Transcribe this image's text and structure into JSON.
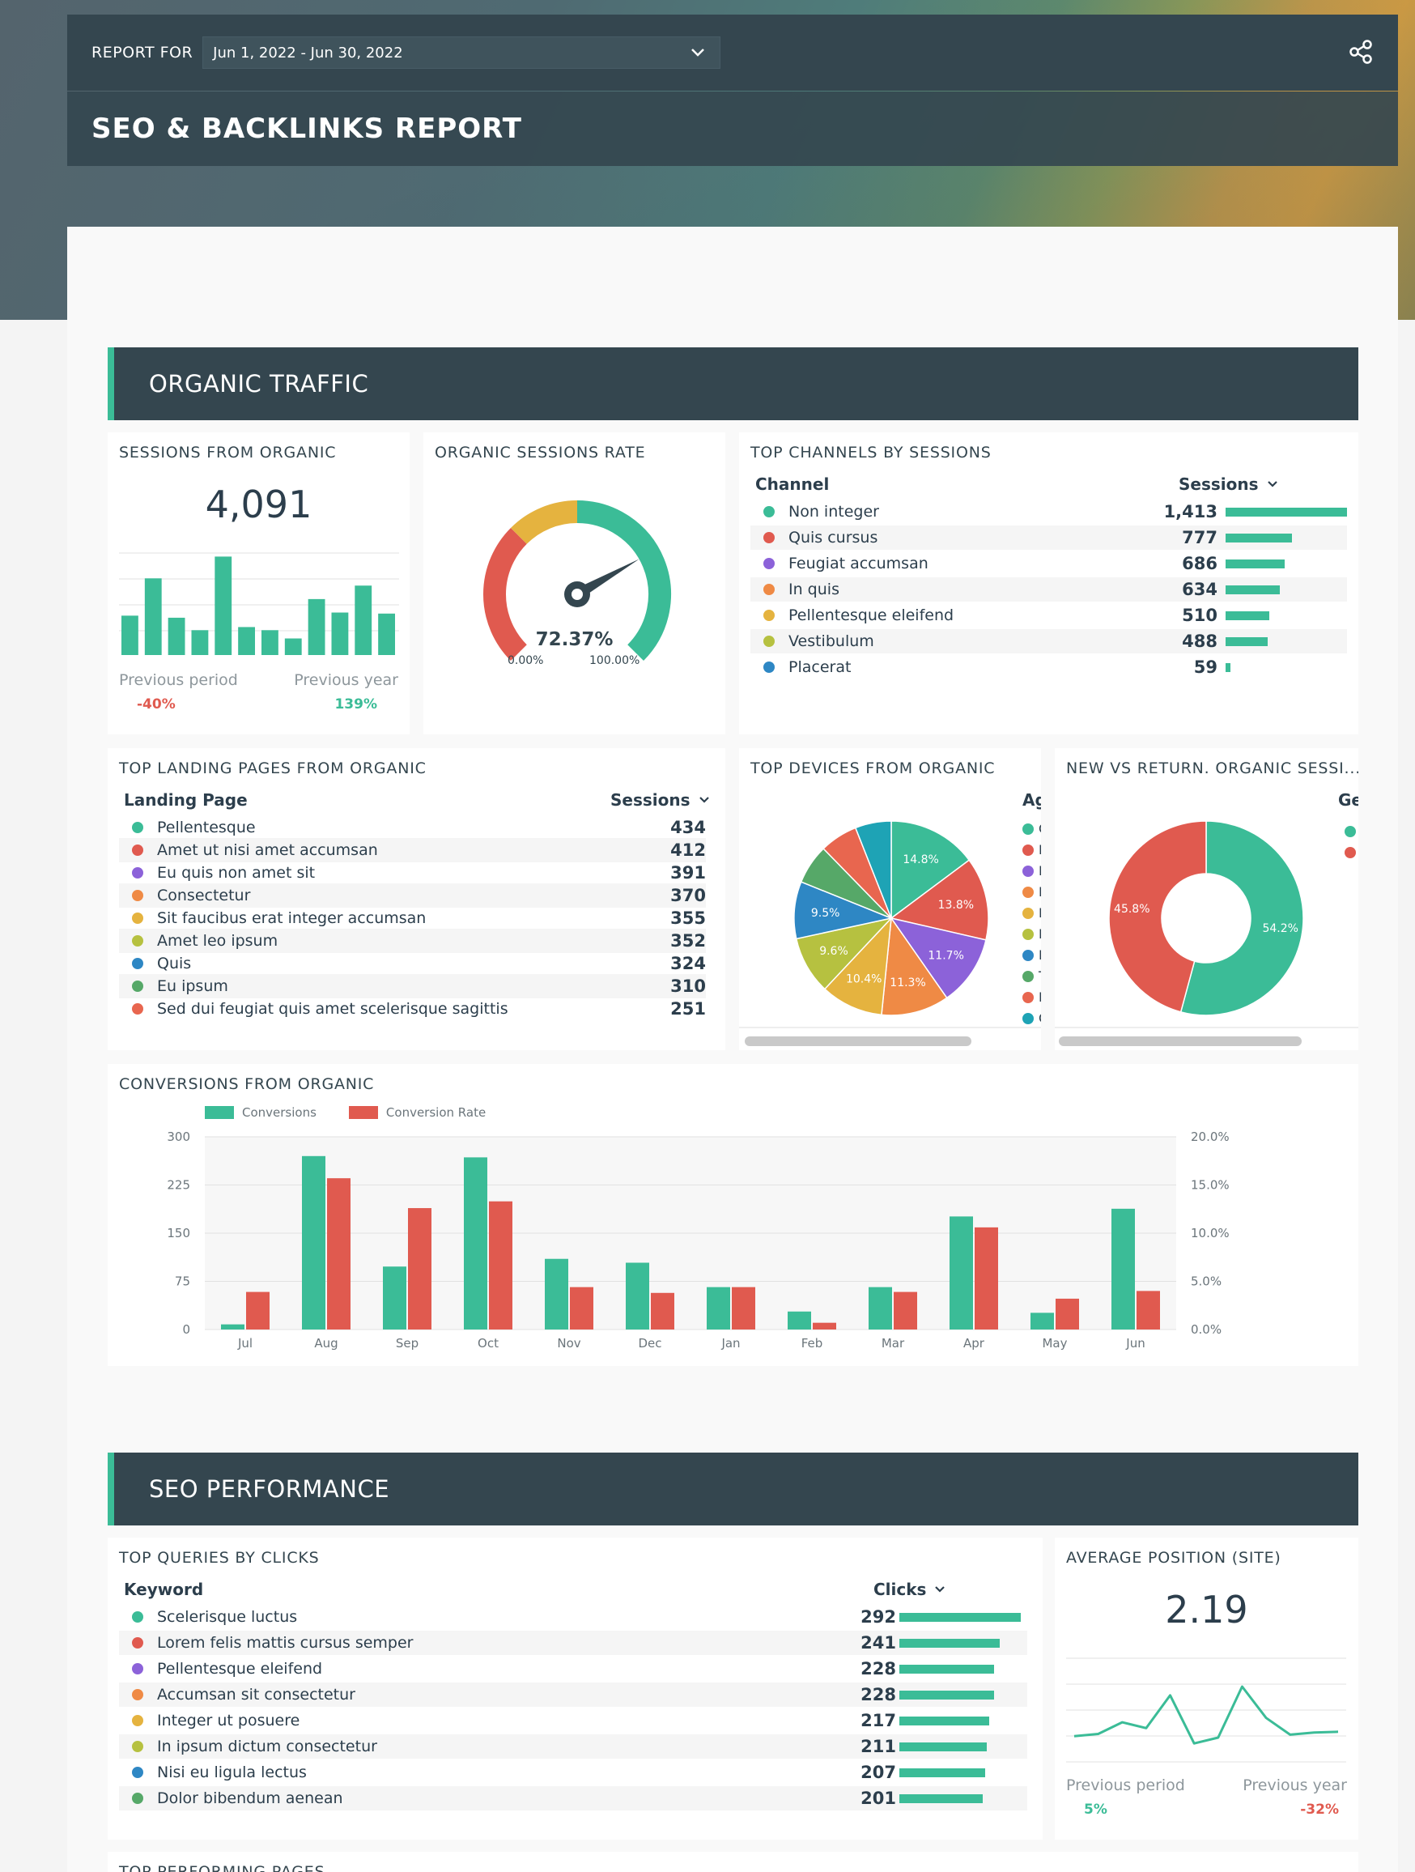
{
  "header": {
    "report_for_label": "REPORT FOR",
    "date_range": "Jun 1, 2022 - Jun 30, 2022",
    "title": "SEO & BACKLINKS REPORT",
    "share_icon": "share-icon"
  },
  "sections": {
    "organic_traffic": "ORGANIC TRAFFIC",
    "seo_performance": "SEO PERFORMANCE"
  },
  "sessions_from_organic": {
    "title": "SESSIONS FROM ORGANIC",
    "value": "4,091",
    "previous_period_label": "Previous period",
    "previous_period_value": "-40%",
    "previous_year_label": "Previous year",
    "previous_year_value": "139%",
    "sparkbars": [
      0.38,
      0.74,
      0.36,
      0.24,
      0.95,
      0.27,
      0.24,
      0.16,
      0.54,
      0.41,
      0.67,
      0.4
    ]
  },
  "organic_sessions_rate": {
    "title": "ORGANIC SESSIONS RATE",
    "value": "72.37%",
    "value_fraction": 0.7237,
    "min_label": "0.00%",
    "max_label": "100.00%"
  },
  "top_channels": {
    "title": "TOP CHANNELS BY SESSIONS",
    "col_channel": "Channel",
    "col_sessions": "Sessions",
    "rows": [
      {
        "label": "Non integer",
        "value": "1,413",
        "num": 1413,
        "color": "#3bbc97"
      },
      {
        "label": "Quis cursus",
        "value": "777",
        "num": 777,
        "color": "#e05a4f"
      },
      {
        "label": "Feugiat accumsan",
        "value": "686",
        "num": 686,
        "color": "#8c62d9"
      },
      {
        "label": "In quis",
        "value": "634",
        "num": 634,
        "color": "#ef8a45"
      },
      {
        "label": "Pellentesque eleifend",
        "value": "510",
        "num": 510,
        "color": "#e5b33f"
      },
      {
        "label": "Vestibulum",
        "value": "488",
        "num": 488,
        "color": "#b6c140"
      },
      {
        "label": "Placerat",
        "value": "59",
        "num": 59,
        "color": "#2e87c4"
      }
    ]
  },
  "top_landing_pages": {
    "title": "TOP LANDING PAGES FROM ORGANIC",
    "col_page": "Landing Page",
    "col_sessions": "Sessions",
    "rows": [
      {
        "label": "Pellentesque",
        "value": "434",
        "color": "#3bbc97"
      },
      {
        "label": "Amet ut nisi amet accumsan",
        "value": "412",
        "color": "#e05a4f"
      },
      {
        "label": "Eu quis non amet sit",
        "value": "391",
        "color": "#8c62d9"
      },
      {
        "label": "Consectetur",
        "value": "370",
        "color": "#ef8a45"
      },
      {
        "label": "Sit faucibus erat integer accumsan",
        "value": "355",
        "color": "#e5b33f"
      },
      {
        "label": "Amet leo ipsum",
        "value": "352",
        "color": "#b6c140"
      },
      {
        "label": "Quis",
        "value": "324",
        "color": "#2e87c4"
      },
      {
        "label": "Eu ipsum",
        "value": "310",
        "color": "#56a868"
      },
      {
        "label": "Sed dui feugiat quis amet scelerisque sagittis",
        "value": "251",
        "color": "#e8664f"
      }
    ]
  },
  "top_devices": {
    "title": "TOP DEVICES FROM ORGANIC",
    "legend_header": "Ag",
    "legend_letters": [
      "C",
      "D",
      "F",
      "F",
      "N",
      "N",
      "E",
      "T",
      "I",
      "C"
    ]
  },
  "new_vs_returning": {
    "title": "NEW VS RETURN. ORGANIC SESSI...",
    "legend_header": "Ge"
  },
  "conversions": {
    "title": "CONVERSIONS FROM ORGANIC",
    "legend_conversions": "Conversions",
    "legend_rate": "Conversion Rate"
  },
  "top_queries": {
    "title": "TOP QUERIES BY CLICKS",
    "col_keyword": "Keyword",
    "col_clicks": "Clicks",
    "rows": [
      {
        "label": "Scelerisque luctus",
        "value": "292",
        "num": 292,
        "color": "#3bbc97"
      },
      {
        "label": "Lorem felis mattis cursus semper",
        "value": "241",
        "num": 241,
        "color": "#e05a4f"
      },
      {
        "label": "Pellentesque eleifend",
        "value": "228",
        "num": 228,
        "color": "#8c62d9"
      },
      {
        "label": "Accumsan sit consectetur",
        "value": "228",
        "num": 228,
        "color": "#ef8a45"
      },
      {
        "label": "Integer ut posuere",
        "value": "217",
        "num": 217,
        "color": "#e5b33f"
      },
      {
        "label": "In ipsum dictum consectetur",
        "value": "211",
        "num": 211,
        "color": "#b6c140"
      },
      {
        "label": "Nisi eu ligula lectus",
        "value": "207",
        "num": 207,
        "color": "#2e87c4"
      },
      {
        "label": "Dolor bibendum aenean",
        "value": "201",
        "num": 201,
        "color": "#56a868"
      }
    ]
  },
  "average_position": {
    "title": "AVERAGE POSITION (SITE)",
    "value": "2.19",
    "previous_period_label": "Previous period",
    "previous_period_value": "5%",
    "previous_year_label": "Previous year",
    "previous_year_value": "-32%",
    "sparkline": [
      0.22,
      0.25,
      0.41,
      0.33,
      0.78,
      0.12,
      0.2,
      0.9,
      0.47,
      0.24,
      0.27,
      0.28
    ]
  },
  "next_section_title": "TOP PERFORMING PAGES",
  "chart_data": [
    {
      "type": "pie",
      "title": "TOP DEVICES FROM ORGANIC",
      "slices": [
        {
          "value": 14.8,
          "label": "14.8%",
          "color": "#3bbc97"
        },
        {
          "value": 13.8,
          "label": "13.8%",
          "color": "#e05a4f"
        },
        {
          "value": 11.7,
          "label": "11.7%",
          "color": "#8c62d9"
        },
        {
          "value": 11.3,
          "label": "11.3%",
          "color": "#ef8a45"
        },
        {
          "value": 10.4,
          "label": "10.4%",
          "color": "#e5b33f"
        },
        {
          "value": 9.6,
          "label": "9.6%",
          "color": "#b6c140"
        },
        {
          "value": 9.5,
          "label": "9.5%",
          "color": "#2e87c4"
        },
        {
          "value": 6.6,
          "label": "",
          "color": "#56a868"
        },
        {
          "value": 6.3,
          "label": "",
          "color": "#e8664f"
        },
        {
          "value": 6.0,
          "label": "",
          "color": "#1ea3b5"
        }
      ]
    },
    {
      "type": "pie",
      "title": "NEW VS RETURN. ORGANIC SESSI...",
      "donut": true,
      "slices": [
        {
          "value": 54.2,
          "label": "54.2%",
          "color": "#3bbc97"
        },
        {
          "value": 45.8,
          "label": "45.8%",
          "color": "#e05a4f"
        }
      ]
    },
    {
      "type": "bar",
      "title": "CONVERSIONS FROM ORGANIC",
      "categories": [
        "Jul",
        "Aug",
        "Sep",
        "Oct",
        "Nov",
        "Dec",
        "Jan",
        "Feb",
        "Mar",
        "Apr",
        "May",
        "Jun"
      ],
      "series": [
        {
          "name": "Conversions",
          "axis": "left",
          "color": "#3bbc97",
          "values": [
            8,
            270,
            98,
            268,
            110,
            104,
            66,
            28,
            66,
            176,
            26,
            188
          ]
        },
        {
          "name": "Conversion Rate",
          "axis": "right",
          "color": "#e05a4f",
          "values": [
            3.9,
            15.7,
            12.6,
            13.3,
            4.4,
            3.8,
            4.4,
            0.7,
            3.9,
            10.6,
            3.2,
            4.0
          ]
        }
      ],
      "ylim_left": [
        0,
        300
      ],
      "yticks_left": [
        "0",
        "75",
        "150",
        "225",
        "300"
      ],
      "ylim_right": [
        0,
        20
      ],
      "yticks_right": [
        "0.0%",
        "5.0%",
        "10.0%",
        "15.0%",
        "20.0%"
      ],
      "grid": true,
      "legend": "top-left"
    }
  ]
}
